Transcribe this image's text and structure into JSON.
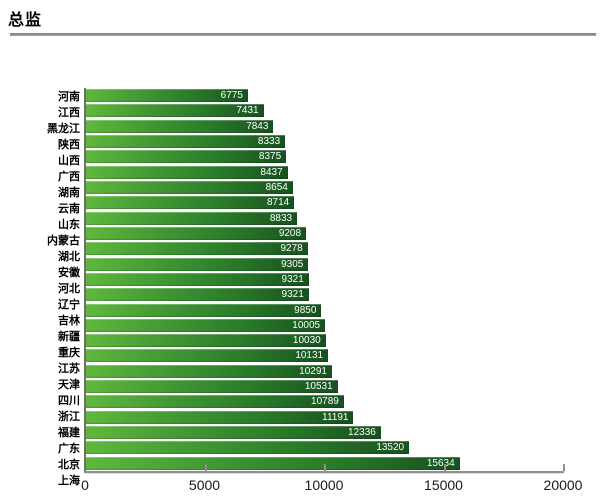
{
  "page": {
    "title": "总监"
  },
  "chart_data": {
    "type": "bar",
    "orientation": "horizontal",
    "title": "总监",
    "xlabel": "",
    "ylabel": "",
    "xlim": [
      0,
      20000
    ],
    "x_tick_labels": [
      "0",
      "5000",
      "10000",
      "15000",
      "20000"
    ],
    "grid": false,
    "legend": false,
    "categories": [
      "河南",
      "江西",
      "黑龙江",
      "陕西",
      "山西",
      "广西",
      "湖南",
      "云南",
      "山东",
      "内蒙古",
      "湖北",
      "安徽",
      "河北",
      "辽宁",
      "吉林",
      "新疆",
      "重庆",
      "江苏",
      "天津",
      "四川",
      "浙江",
      "福建",
      "广东",
      "北京",
      "上海"
    ],
    "values": [
      6775,
      7431,
      7843,
      8333,
      8375,
      8437,
      8654,
      8714,
      8833,
      9208,
      9278,
      9305,
      9321,
      9321,
      9850,
      10005,
      10030,
      10131,
      10291,
      10531,
      10789,
      11191,
      12336,
      13520,
      15634
    ],
    "colors": {
      "bar_gradient_start": "#5fb83d",
      "bar_gradient_end": "#17511f",
      "value_label": "#ffffff",
      "axis": "#8f8f8f",
      "y_axis": "#6f6f6f",
      "tick_label": "#1a1a1a",
      "divider": "#8c8c8c"
    }
  }
}
